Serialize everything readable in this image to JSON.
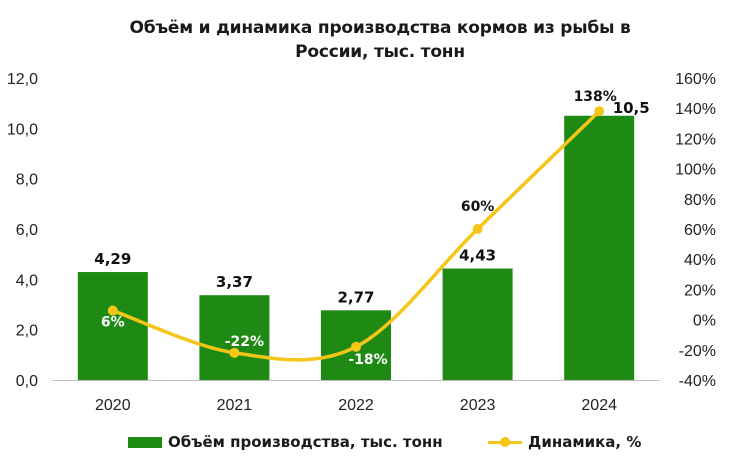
{
  "chart_data": {
    "type": "bar",
    "title_line1": "Объём и динамика производства кормов из рыбы в",
    "title_line2": "России, тыс. тонн",
    "categories": [
      "2020",
      "2021",
      "2022",
      "2023",
      "2024"
    ],
    "series": [
      {
        "name": "Объём производства, тыс. тонн",
        "type": "bar",
        "axis": "left",
        "values": [
          4.29,
          3.37,
          2.77,
          4.43,
          10.5
        ],
        "labels": [
          "4,29",
          "3,37",
          "2,77",
          "4,43",
          "10,5"
        ],
        "color": "#1e8a14"
      },
      {
        "name": "Динамика, %",
        "type": "line",
        "axis": "right",
        "values": [
          6,
          -22,
          -18,
          60,
          138
        ],
        "labels": [
          "6%",
          "-22%",
          "-18%",
          "60%",
          "138%"
        ],
        "color": "#f5c518"
      }
    ],
    "y_left": {
      "min": 0,
      "max": 12,
      "step": 2,
      "tick_labels": [
        "0,0",
        "2,0",
        "4,0",
        "6,0",
        "8,0",
        "10,0",
        "12,0"
      ]
    },
    "y_right": {
      "min": -40,
      "max": 160,
      "step": 20,
      "tick_labels": [
        "-40%",
        "-20%",
        "0%",
        "20%",
        "40%",
        "60%",
        "80%",
        "100%",
        "120%",
        "140%",
        "160%"
      ]
    },
    "grid": false,
    "legend_position": "bottom"
  }
}
